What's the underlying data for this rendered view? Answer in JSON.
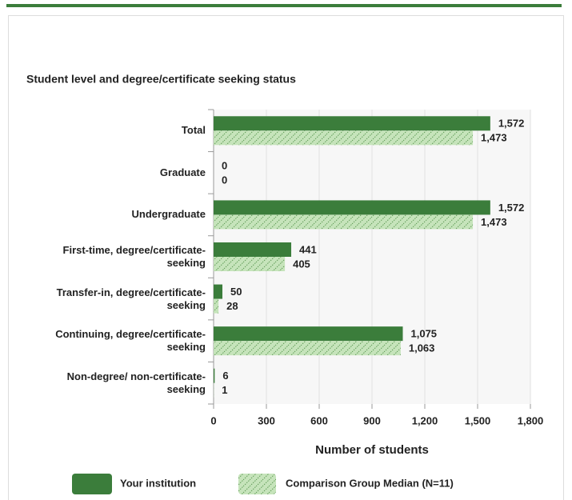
{
  "chart_data": {
    "type": "bar",
    "orientation": "horizontal",
    "title": "Student level and degree/certificate seeking status",
    "xlabel": "Number of students",
    "categories": [
      "Total",
      "Graduate",
      "Undergraduate",
      "First-time, degree/certificate-seeking",
      "Transfer-in, degree/certificate-seeking",
      "Continuing, degree/certificate-seeking",
      "Non-degree/ non-certificate-seeking"
    ],
    "series": [
      {
        "name": "Your institution",
        "color": "#3b7d3b",
        "pattern": "solid",
        "values": [
          1572,
          0,
          1572,
          441,
          50,
          1075,
          6
        ],
        "value_labels": [
          "1,572",
          "0",
          "1,572",
          "441",
          "50",
          "1,075",
          "6"
        ]
      },
      {
        "name": "Comparison Group Median (N=11)",
        "color": "#bfe0b4",
        "pattern": "hatched",
        "values": [
          1473,
          0,
          1473,
          405,
          28,
          1063,
          1
        ],
        "value_labels": [
          "1,473",
          "0",
          "1,473",
          "405",
          "28",
          "1,063",
          "1"
        ]
      }
    ],
    "xlim": [
      0,
      1800
    ],
    "xticks": [
      0,
      300,
      600,
      900,
      {
        "value": 1200,
        "label": "1,200"
      },
      {
        "value": 1500,
        "label": "1,500"
      },
      {
        "value": 1800,
        "label": "1,800"
      }
    ],
    "grid": true,
    "legend": "bottom"
  }
}
